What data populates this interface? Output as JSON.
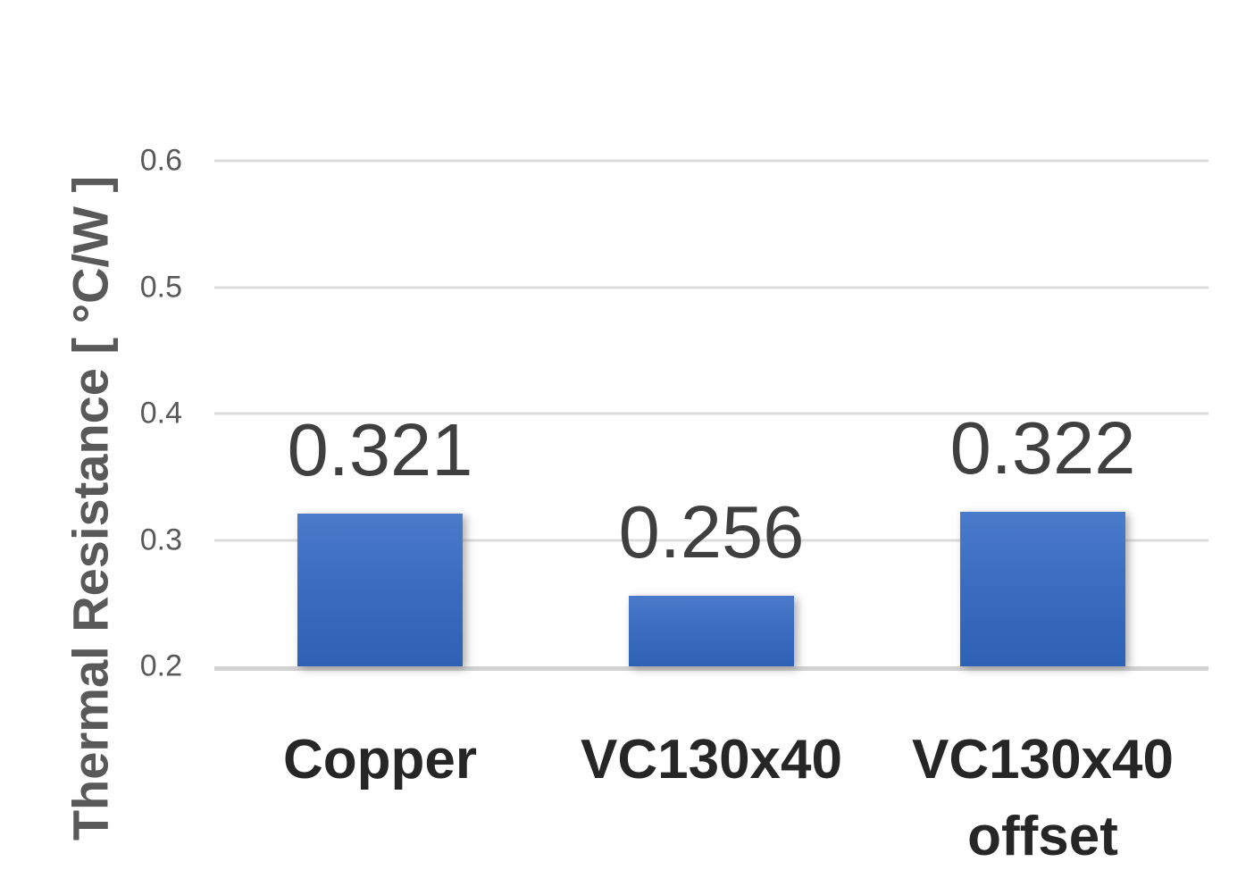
{
  "chart_data": {
    "type": "bar",
    "title": "",
    "categories": [
      "Copper",
      "VC130x40",
      "VC130x40\noffset"
    ],
    "values": [
      0.321,
      0.256,
      0.322
    ],
    "data_labels": [
      "0.321",
      "0.256",
      "0.322"
    ],
    "ylabel": "Thermal Resistance [ °C/W ]",
    "xlabel": "",
    "ylim": [
      0.2,
      0.6
    ],
    "yticks": [
      {
        "value": 0.2,
        "label": "0.2"
      },
      {
        "value": 0.3,
        "label": "0.3"
      },
      {
        "value": 0.4,
        "label": "0.4"
      },
      {
        "value": 0.5,
        "label": "0.5"
      },
      {
        "value": 0.6,
        "label": "0.6"
      }
    ],
    "grid": true,
    "legend": false,
    "colors": {
      "bar_gradient_top": "#4C7ACB",
      "bar_gradient_bottom": "#2E62B5",
      "gridline": "#DCDCDC",
      "baseline": "#D2D2D2",
      "tick_label": "#595959",
      "axis_title": "#595959",
      "data_label": "#3F3F3F",
      "category_label": "#262626",
      "background": "#FFFFFF"
    }
  }
}
